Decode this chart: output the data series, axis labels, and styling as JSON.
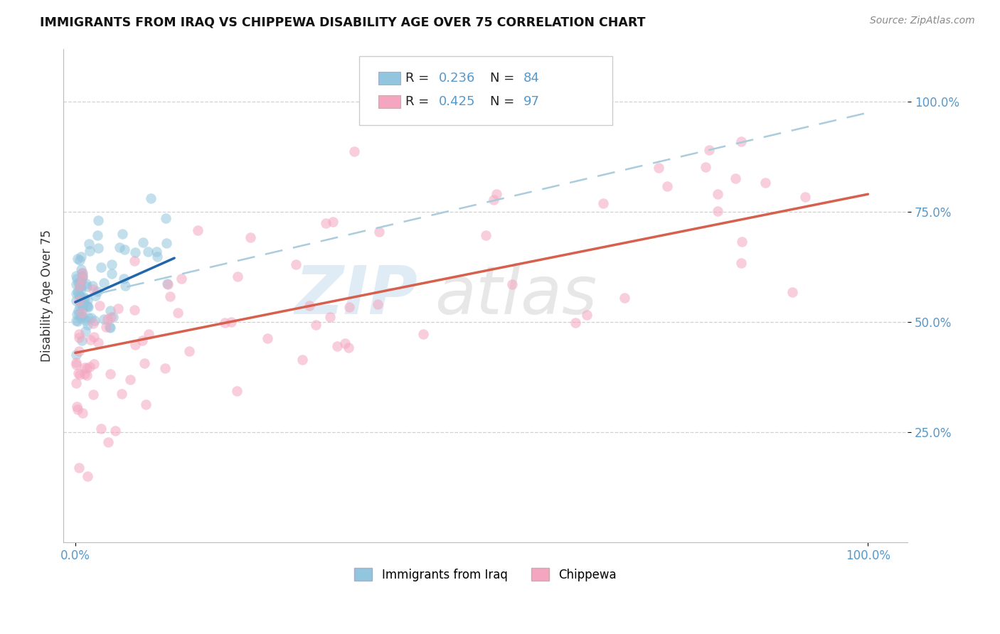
{
  "title": "IMMIGRANTS FROM IRAQ VS CHIPPEWA DISABILITY AGE OVER 75 CORRELATION CHART",
  "source": "Source: ZipAtlas.com",
  "ylabel": "Disability Age Over 75",
  "legend_label1": "Immigrants from Iraq",
  "legend_label2": "Chippewa",
  "R1": 0.236,
  "N1": 84,
  "R2": 0.425,
  "N2": 97,
  "color_blue": "#92c5de",
  "color_pink": "#f4a6c0",
  "line_blue": "#2166ac",
  "line_pink": "#d6604d",
  "dash_color": "#aaccdd",
  "background_color": "#ffffff",
  "grid_color": "#cccccc",
  "tick_color": "#5599cc",
  "xlim": [
    0.0,
    1.0
  ],
  "ylim": [
    0.0,
    1.1
  ],
  "xticks": [
    0.0,
    1.0
  ],
  "yticks": [
    0.25,
    0.5,
    0.75,
    1.0
  ],
  "watermark_zip": "ZIP",
  "watermark_atlas": "atlas"
}
